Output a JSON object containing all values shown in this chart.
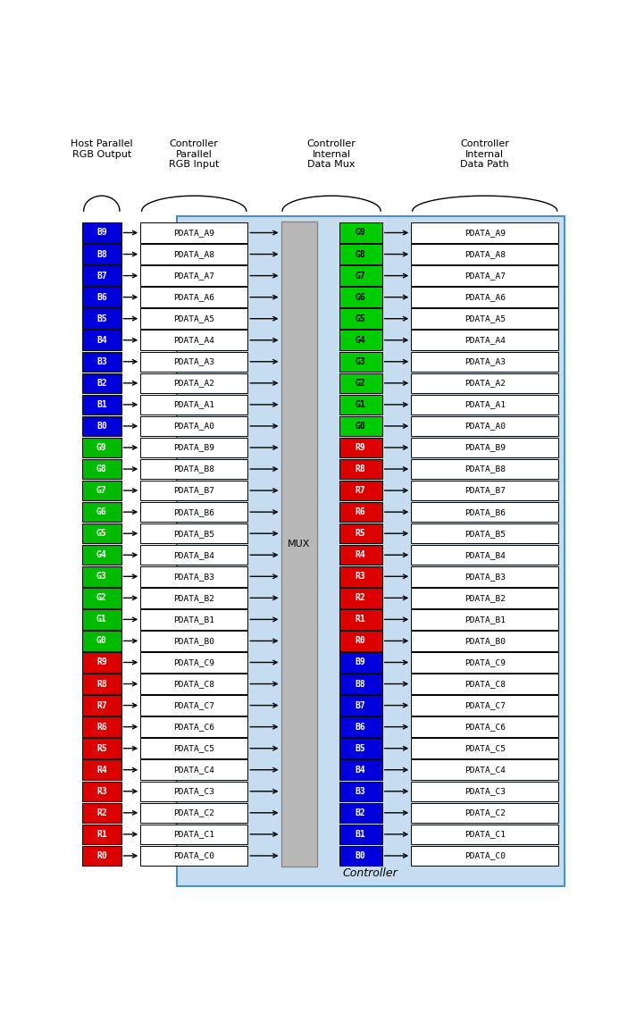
{
  "bg_color": "#ffffff",
  "controller_bg": "#c0d8f0",
  "col_headers": [
    "Controller\nParallel\nRGB Input",
    "Controller\nInternal\nData Mux",
    "Controller\nInternal\nData Path"
  ],
  "host_label": "Host Parallel\nRGB Output",
  "rows": [
    {
      "left_label": "B9",
      "left_color": "#0000dd",
      "mid_label": "PDATA_A9",
      "mux_label": "G9",
      "mux_color": "#00cc00",
      "right_label": "PDATA_A9"
    },
    {
      "left_label": "B8",
      "left_color": "#0000dd",
      "mid_label": "PDATA_A8",
      "mux_label": "G8",
      "mux_color": "#00cc00",
      "right_label": "PDATA_A8"
    },
    {
      "left_label": "B7",
      "left_color": "#0000dd",
      "mid_label": "PDATA_A7",
      "mux_label": "G7",
      "mux_color": "#00cc00",
      "right_label": "PDATA_A7"
    },
    {
      "left_label": "B6",
      "left_color": "#0000dd",
      "mid_label": "PDATA_A6",
      "mux_label": "G6",
      "mux_color": "#00cc00",
      "right_label": "PDATA_A6"
    },
    {
      "left_label": "B5",
      "left_color": "#0000dd",
      "mid_label": "PDATA_A5",
      "mux_label": "G5",
      "mux_color": "#00cc00",
      "right_label": "PDATA_A5"
    },
    {
      "left_label": "B4",
      "left_color": "#0000dd",
      "mid_label": "PDATA_A4",
      "mux_label": "G4",
      "mux_color": "#00cc00",
      "right_label": "PDATA_A4"
    },
    {
      "left_label": "B3",
      "left_color": "#0000dd",
      "mid_label": "PDATA_A3",
      "mux_label": "G3",
      "mux_color": "#00cc00",
      "right_label": "PDATA_A3"
    },
    {
      "left_label": "B2",
      "left_color": "#0000dd",
      "mid_label": "PDATA_A2",
      "mux_label": "G2",
      "mux_color": "#00cc00",
      "right_label": "PDATA_A2"
    },
    {
      "left_label": "B1",
      "left_color": "#0000dd",
      "mid_label": "PDATA_A1",
      "mux_label": "G1",
      "mux_color": "#00cc00",
      "right_label": "PDATA_A1"
    },
    {
      "left_label": "B0",
      "left_color": "#0000dd",
      "mid_label": "PDATA_A0",
      "mux_label": "G0",
      "mux_color": "#00cc00",
      "right_label": "PDATA_A0"
    },
    {
      "left_label": "G9",
      "left_color": "#00bb00",
      "mid_label": "PDATA_B9",
      "mux_label": "R9",
      "mux_color": "#dd0000",
      "right_label": "PDATA_B9"
    },
    {
      "left_label": "G8",
      "left_color": "#00bb00",
      "mid_label": "PDATA_B8",
      "mux_label": "R8",
      "mux_color": "#dd0000",
      "right_label": "PDATA_B8"
    },
    {
      "left_label": "G7",
      "left_color": "#00bb00",
      "mid_label": "PDATA_B7",
      "mux_label": "R7",
      "mux_color": "#dd0000",
      "right_label": "PDATA_B7"
    },
    {
      "left_label": "G6",
      "left_color": "#00bb00",
      "mid_label": "PDATA_B6",
      "mux_label": "R6",
      "mux_color": "#dd0000",
      "right_label": "PDATA_B6"
    },
    {
      "left_label": "G5",
      "left_color": "#00bb00",
      "mid_label": "PDATA_B5",
      "mux_label": "R5",
      "mux_color": "#dd0000",
      "right_label": "PDATA_B5"
    },
    {
      "left_label": "G4",
      "left_color": "#00bb00",
      "mid_label": "PDATA_B4",
      "mux_label": "R4",
      "mux_color": "#dd0000",
      "right_label": "PDATA_B4"
    },
    {
      "left_label": "G3",
      "left_color": "#00bb00",
      "mid_label": "PDATA_B3",
      "mux_label": "R3",
      "mux_color": "#dd0000",
      "right_label": "PDATA_B3"
    },
    {
      "left_label": "G2",
      "left_color": "#00bb00",
      "mid_label": "PDATA_B2",
      "mux_label": "R2",
      "mux_color": "#dd0000",
      "right_label": "PDATA_B2"
    },
    {
      "left_label": "G1",
      "left_color": "#00bb00",
      "mid_label": "PDATA_B1",
      "mux_label": "R1",
      "mux_color": "#dd0000",
      "right_label": "PDATA_B1"
    },
    {
      "left_label": "G0",
      "left_color": "#00bb00",
      "mid_label": "PDATA_B0",
      "mux_label": "R0",
      "mux_color": "#dd0000",
      "right_label": "PDATA_B0"
    },
    {
      "left_label": "R9",
      "left_color": "#dd0000",
      "mid_label": "PDATA_C9",
      "mux_label": "B9",
      "mux_color": "#0000dd",
      "right_label": "PDATA_C9"
    },
    {
      "left_label": "R8",
      "left_color": "#dd0000",
      "mid_label": "PDATA_C8",
      "mux_label": "B8",
      "mux_color": "#0000dd",
      "right_label": "PDATA_C8"
    },
    {
      "left_label": "R7",
      "left_color": "#dd0000",
      "mid_label": "PDATA_C7",
      "mux_label": "B7",
      "mux_color": "#0000dd",
      "right_label": "PDATA_C7"
    },
    {
      "left_label": "R6",
      "left_color": "#dd0000",
      "mid_label": "PDATA_C6",
      "mux_label": "B6",
      "mux_color": "#0000dd",
      "right_label": "PDATA_C6"
    },
    {
      "left_label": "R5",
      "left_color": "#dd0000",
      "mid_label": "PDATA_C5",
      "mux_label": "B5",
      "mux_color": "#0000dd",
      "right_label": "PDATA_C5"
    },
    {
      "left_label": "R4",
      "left_color": "#dd0000",
      "mid_label": "PDATA_C4",
      "mux_label": "B4",
      "mux_color": "#0000dd",
      "right_label": "PDATA_C4"
    },
    {
      "left_label": "R3",
      "left_color": "#dd0000",
      "mid_label": "PDATA_C3",
      "mux_label": "B3",
      "mux_color": "#0000dd",
      "right_label": "PDATA_C3"
    },
    {
      "left_label": "R2",
      "left_color": "#dd0000",
      "mid_label": "PDATA_C2",
      "mux_label": "B2",
      "mux_color": "#0000dd",
      "right_label": "PDATA_C2"
    },
    {
      "left_label": "R1",
      "left_color": "#dd0000",
      "mid_label": "PDATA_C1",
      "mux_label": "B1",
      "mux_color": "#0000dd",
      "right_label": "PDATA_C1"
    },
    {
      "left_label": "R0",
      "left_color": "#dd0000",
      "mid_label": "PDATA_C0",
      "mux_label": "B0",
      "mux_color": "#0000dd",
      "right_label": "PDATA_C0"
    }
  ],
  "controller_label": "Controller",
  "mux_box_label": "MUX"
}
